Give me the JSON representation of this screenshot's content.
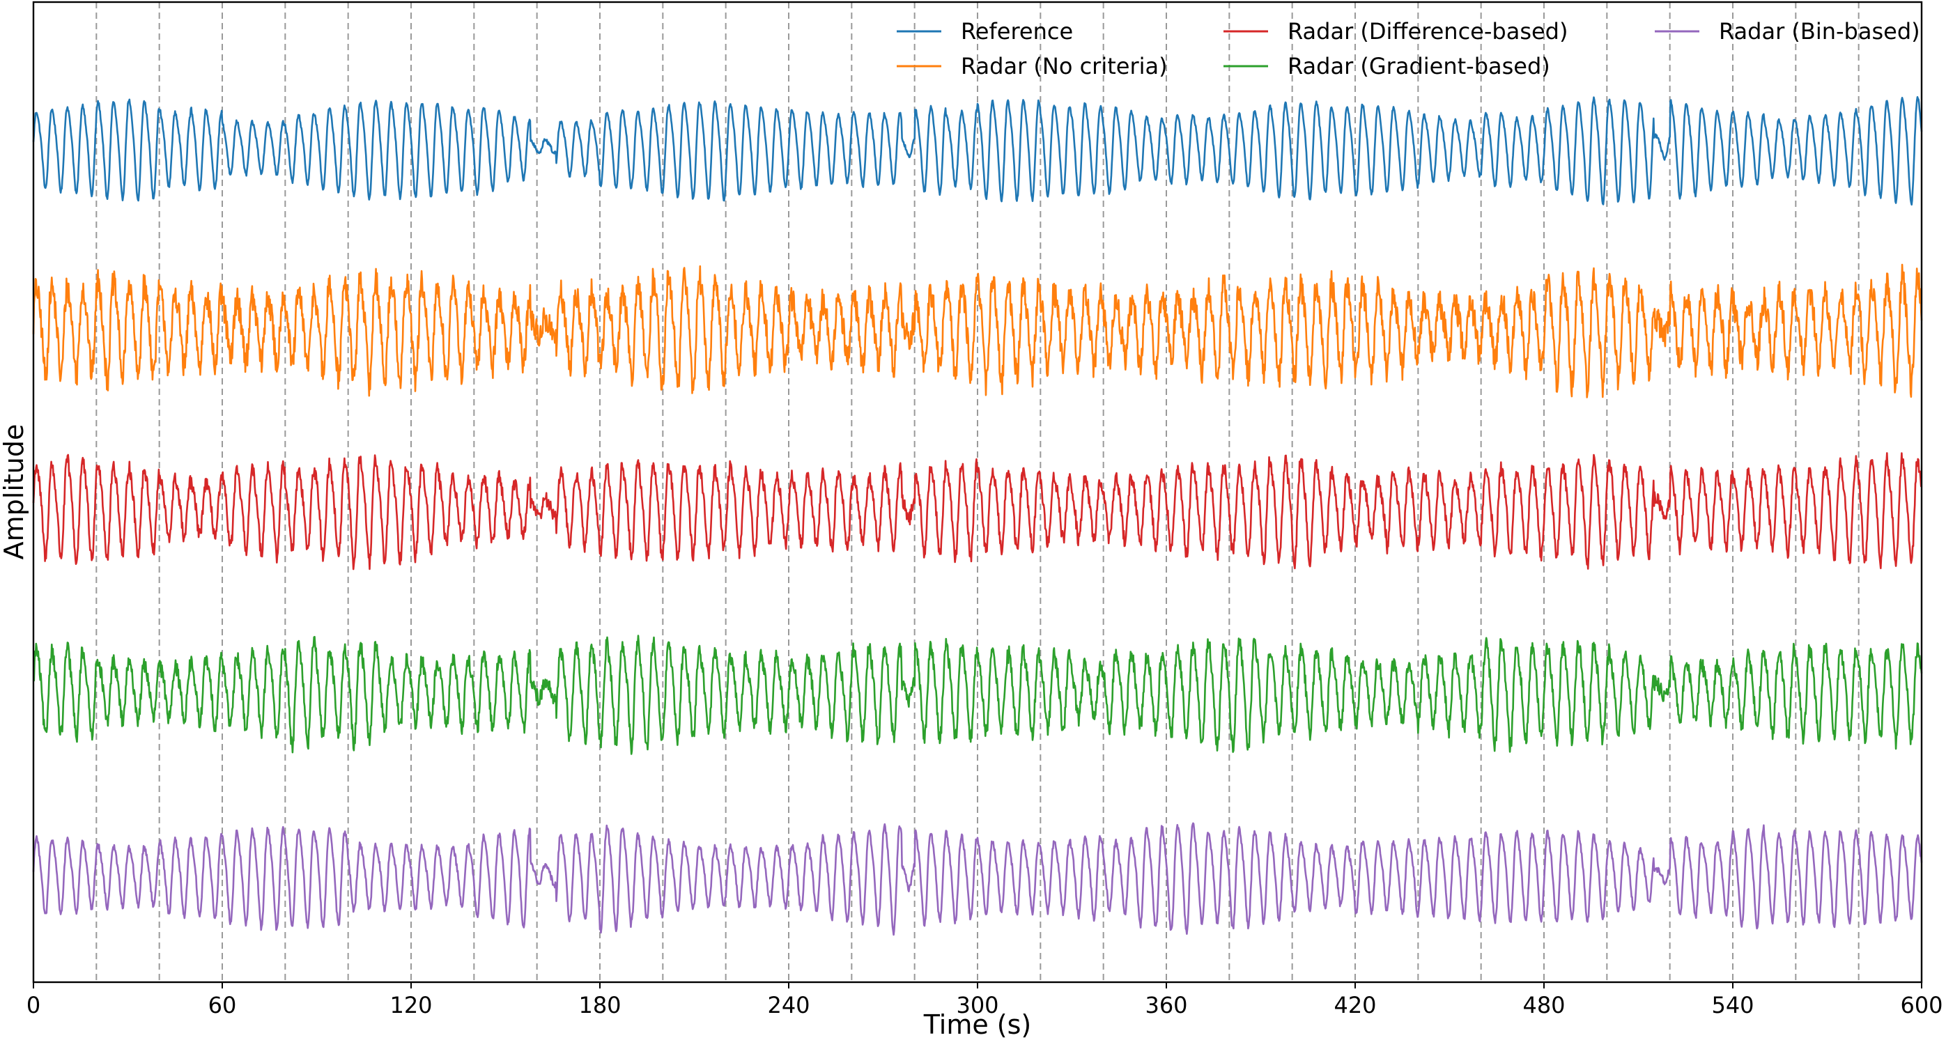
{
  "chart_data": {
    "type": "line",
    "title": "",
    "xlabel": "Time (s)",
    "ylabel": "Amplitude",
    "xlim": [
      0,
      600
    ],
    "xticks": [
      0,
      60,
      120,
      180,
      240,
      300,
      360,
      420,
      480,
      540,
      600
    ],
    "xtick_labels": [
      "0",
      "60",
      "120",
      "180",
      "240",
      "300",
      "360",
      "420",
      "480",
      "540",
      "600"
    ],
    "y_ticks_shown": false,
    "vertical_dashed_lines_every_s": 20,
    "legend_position": "top-right",
    "legend_columns": 3,
    "breathing_period_s": 4.9,
    "pause_intervals_s": [
      [
        158,
        166
      ],
      [
        276,
        280
      ],
      [
        515,
        520
      ]
    ],
    "series": [
      {
        "name": "Reference",
        "color": "#1f77b4",
        "noise": 0.05
      },
      {
        "name": "Radar (No criteria)",
        "color": "#ff7f0e",
        "noise": 0.35
      },
      {
        "name": "Radar (Difference-based)",
        "color": "#d62728",
        "noise": 0.18
      },
      {
        "name": "Radar (Gradient-based)",
        "color": "#2ca02c",
        "noise": 0.2
      },
      {
        "name": "Radar (Bin-based)",
        "color": "#9467bd",
        "noise": 0.08
      }
    ]
  }
}
